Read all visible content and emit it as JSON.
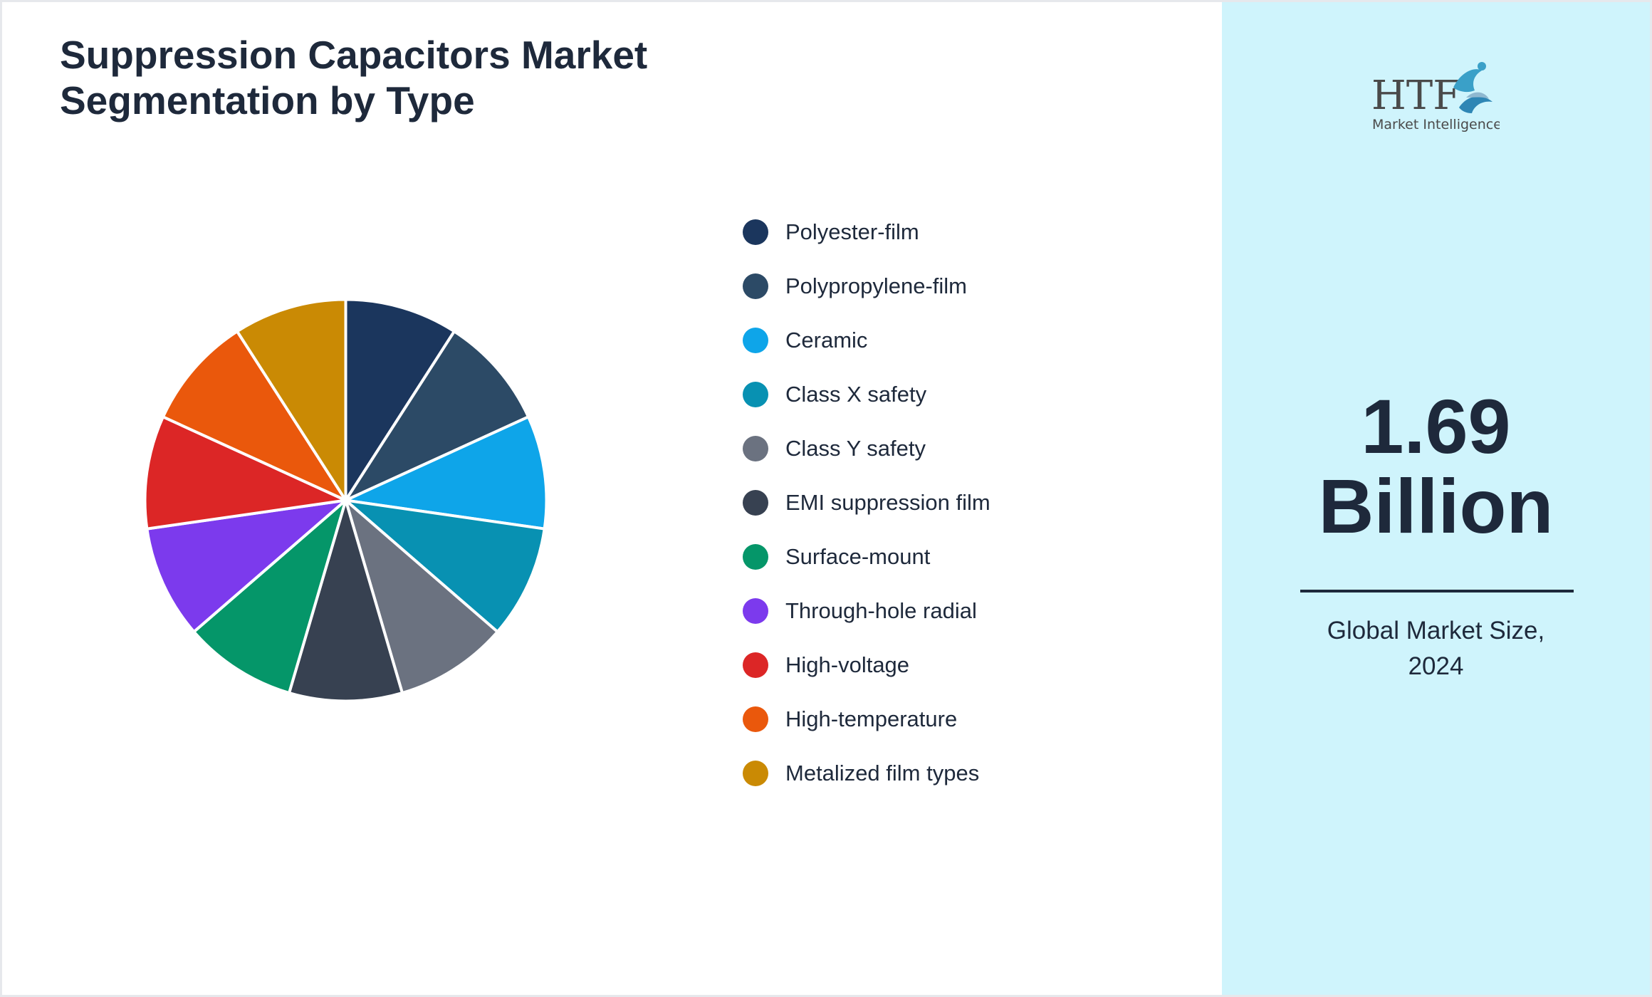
{
  "title_line1": "Suppression Capacitors Market",
  "title_line2": "Segmentation by Type",
  "logo": {
    "brand": "HTF",
    "tagline": "Market Intelligence"
  },
  "metric": {
    "value_line1": "1.69",
    "value_line2": "Billion",
    "caption_line1": "Global Market Size,",
    "caption_line2": "2024"
  },
  "colors": {
    "panel_background": "#cff4fc",
    "text": "#1e293b"
  },
  "chart_data": {
    "type": "pie",
    "categories": [
      "Polyester-film",
      "Polypropylene-film",
      "Ceramic",
      "Class X safety",
      "Class Y safety",
      "EMI suppression film",
      "Surface-mount",
      "Through-hole radial",
      "High-voltage",
      "High-temperature",
      "Metalized film types"
    ],
    "values": [
      1,
      1,
      1,
      1,
      1,
      1,
      1,
      1,
      1,
      1,
      1
    ],
    "colors": [
      "#1b365d",
      "#2c4a66",
      "#0ea5e9",
      "#0891b2",
      "#6b7280",
      "#374151",
      "#059669",
      "#7c3aed",
      "#dc2626",
      "#ea580c",
      "#ca8a04"
    ],
    "legend_position": "right",
    "start_angle": "top, clockwise"
  }
}
